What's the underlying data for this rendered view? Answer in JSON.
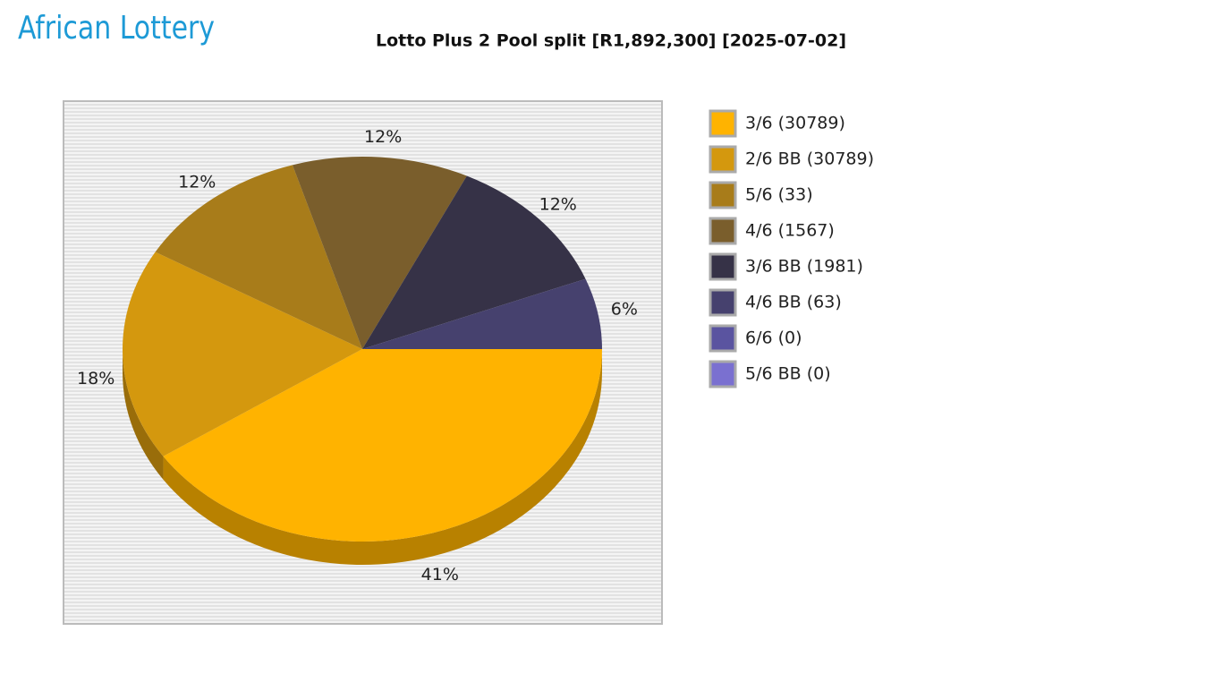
{
  "logo": "African Lottery",
  "chart_data": {
    "type": "pie",
    "title": "Lotto Plus 2 Pool split [R1,892,300] [2025-07-02]",
    "categories": [
      "3/6 (30789)",
      "2/6 BB (30789)",
      "5/6 (33)",
      "4/6 (1567)",
      "3/6 BB (1981)",
      "4/6 BB (63)",
      "6/6 (0)",
      "5/6 BB (0)"
    ],
    "values": [
      41,
      18,
      12,
      12,
      12,
      6,
      0,
      0
    ],
    "value_labels": [
      "41%",
      "18%",
      "12%",
      "12%",
      "12%",
      "6%",
      null,
      null
    ],
    "colors": [
      "#ffb300",
      "#d4980e",
      "#a87c1a",
      "#7a5e2c",
      "#363247",
      "#46416e",
      "#5a54a0",
      "#7a70d0"
    ],
    "legend": "right"
  }
}
